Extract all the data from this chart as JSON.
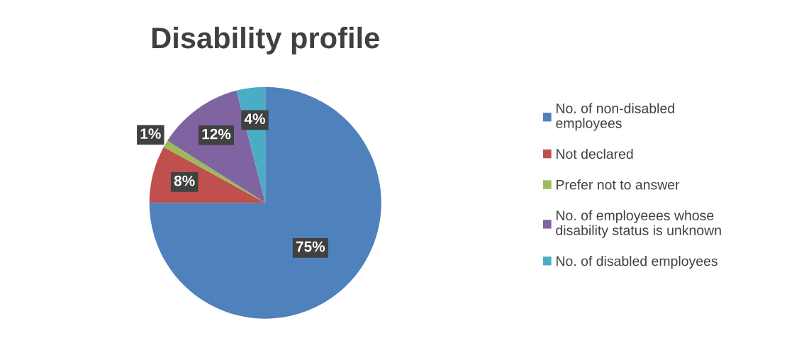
{
  "chart_data": {
    "type": "pie",
    "title": "Disability profile",
    "categories": [
      "No. of non-disabled employees",
      "Not declared",
      "Prefer not to answer",
      "No. of employeees whose disability status is unknown",
      "No. of disabled employees"
    ],
    "values": [
      75,
      8,
      1,
      12,
      4
    ],
    "colors": [
      "#4f81bd",
      "#c0504d",
      "#9bbb59",
      "#8064a2",
      "#4bacc6"
    ],
    "value_labels": [
      "75%",
      "8%",
      "1%",
      "12%",
      "4%"
    ],
    "legend": "right"
  }
}
